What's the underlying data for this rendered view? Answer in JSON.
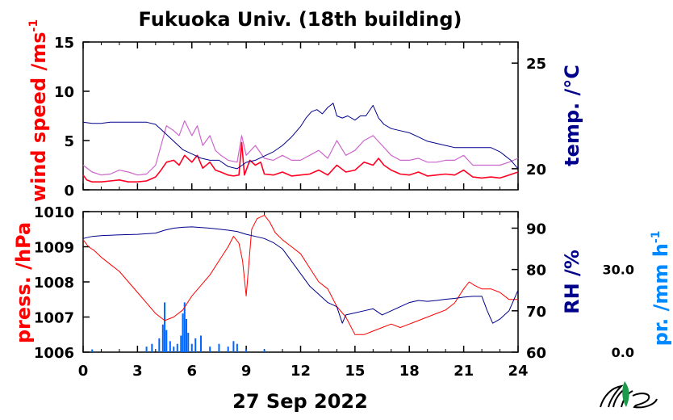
{
  "title": "Fukuoka Univ. (18th building)",
  "xlabel": "27 Sep 2022",
  "colors": {
    "wind": "#ff0022",
    "gust": "#cc66cc",
    "temp": "#00008b",
    "press": "#ff0000",
    "rh": "#00008b",
    "precip": "#0066ff",
    "axis": "#000000"
  },
  "logo": "mes-logo-icon",
  "chart_data": [
    {
      "type": "line",
      "panel": "top",
      "x_ticks": [
        "0",
        "3",
        "6",
        "9",
        "12",
        "15",
        "18",
        "21",
        "24"
      ],
      "xlim": [
        0,
        24
      ],
      "left_axis": {
        "label": "wind speed /ms",
        "label_sup": "-1",
        "ticks": [
          "0",
          "5",
          "10",
          "15"
        ],
        "lim": [
          0,
          15
        ]
      },
      "right_axis": {
        "label": "temp. /°C",
        "ticks": [
          "20",
          "25"
        ],
        "lim": [
          19,
          26
        ]
      },
      "series": [
        {
          "axis": "right",
          "x": [
            0,
            0.5,
            1,
            1.5,
            2,
            2.5,
            3,
            3.5,
            4,
            4.5,
            5,
            5.5,
            6,
            6.5,
            7,
            7.5,
            8,
            8.5,
            9,
            9.5,
            10,
            10.5,
            11,
            11.5,
            12,
            12.3,
            12.6,
            12.9,
            13.2,
            13.5,
            13.8,
            14,
            14.3,
            14.6,
            15,
            15.3,
            15.6,
            16,
            16.3,
            16.6,
            17,
            17.5,
            18,
            18.5,
            19,
            19.5,
            20,
            20.5,
            21,
            21.5,
            22,
            22.5,
            23,
            23.3,
            23.6,
            24
          ],
          "values": [
            22.2,
            22.15,
            22.15,
            22.2,
            22.2,
            22.2,
            22.2,
            22.2,
            22.1,
            21.7,
            21.3,
            20.9,
            20.7,
            20.5,
            20.4,
            20.4,
            20.1,
            20.0,
            20.3,
            20.4,
            20.6,
            20.8,
            21.1,
            21.5,
            22.0,
            22.4,
            22.7,
            22.8,
            22.6,
            22.9,
            23.1,
            22.5,
            22.4,
            22.5,
            22.3,
            22.5,
            22.5,
            23.0,
            22.4,
            22.1,
            21.9,
            21.8,
            21.7,
            21.5,
            21.3,
            21.2,
            21.1,
            21.0,
            21.0,
            21.0,
            21.0,
            21.0,
            20.8,
            20.6,
            20.4,
            20.0
          ]
        },
        {
          "axis": "left",
          "x": [
            0,
            0.2,
            0.5,
            1,
            1.5,
            2,
            2.5,
            3,
            3.5,
            4,
            4.3,
            4.6,
            5,
            5.3,
            5.6,
            6,
            6.3,
            6.6,
            7,
            7.3,
            7.6,
            8,
            8.3,
            8.6,
            8.75,
            8.9,
            9.2,
            9.5,
            9.8,
            10,
            10.5,
            11,
            11.5,
            12,
            12.5,
            13,
            13.5,
            14,
            14.5,
            15,
            15.5,
            16,
            16.3,
            16.6,
            17,
            17.5,
            18,
            18.5,
            19,
            19.5,
            20,
            20.5,
            21,
            21.5,
            22,
            22.5,
            23,
            23.5,
            24
          ],
          "values": [
            1.5,
            1.0,
            0.8,
            0.8,
            0.9,
            1.0,
            0.8,
            0.8,
            0.9,
            1.3,
            2.0,
            2.8,
            3.0,
            2.5,
            3.5,
            2.8,
            3.5,
            2.2,
            2.8,
            2.0,
            1.8,
            1.5,
            1.4,
            1.5,
            4.8,
            1.5,
            3.0,
            2.5,
            2.8,
            1.6,
            1.5,
            1.8,
            1.4,
            1.5,
            1.6,
            2.0,
            1.5,
            2.5,
            1.8,
            2.0,
            2.8,
            2.5,
            3.2,
            2.5,
            2.0,
            1.6,
            1.5,
            1.8,
            1.4,
            1.5,
            1.6,
            1.5,
            2.0,
            1.3,
            1.2,
            1.3,
            1.2,
            1.5,
            1.8
          ]
        },
        {
          "axis": "left",
          "x": [
            0,
            0.5,
            1,
            1.5,
            2,
            2.5,
            3,
            3.5,
            4,
            4.3,
            4.6,
            5,
            5.3,
            5.6,
            6,
            6.3,
            6.6,
            7,
            7.3,
            7.6,
            8,
            8.5,
            8.75,
            9,
            9.5,
            10,
            10.5,
            11,
            11.5,
            12,
            12.5,
            13,
            13.5,
            14,
            14.5,
            15,
            15.5,
            16,
            16.5,
            17,
            17.5,
            18,
            18.5,
            19,
            19.5,
            20,
            20.5,
            21,
            21.5,
            22,
            22.5,
            23,
            23.5,
            24
          ],
          "values": [
            2.5,
            1.8,
            1.5,
            1.6,
            2.0,
            1.8,
            1.5,
            1.6,
            2.5,
            4.5,
            6.5,
            6.0,
            5.5,
            7.0,
            5.5,
            6.5,
            4.5,
            5.5,
            4.0,
            3.5,
            3.0,
            2.8,
            5.5,
            3.5,
            4.5,
            3.2,
            3.0,
            3.5,
            3.0,
            3.0,
            3.5,
            4.0,
            3.2,
            5.0,
            3.5,
            4.0,
            5.0,
            5.5,
            4.5,
            3.5,
            3.0,
            3.0,
            3.2,
            2.8,
            2.8,
            3.0,
            3.0,
            3.5,
            2.5,
            2.5,
            2.5,
            2.5,
            2.8,
            3.2
          ]
        }
      ]
    },
    {
      "type": "line",
      "panel": "bottom",
      "x_ticks": [
        "0",
        "3",
        "6",
        "9",
        "12",
        "15",
        "18",
        "21",
        "24"
      ],
      "xlim": [
        0,
        24
      ],
      "left_axis": {
        "label": "press. /hPa",
        "ticks": [
          "1006",
          "1007",
          "1008",
          "1009",
          "1010"
        ],
        "lim": [
          1006,
          1010
        ]
      },
      "right_axis": {
        "label": "RH /%",
        "ticks": [
          "60",
          "70",
          "80",
          "90"
        ],
        "lim": [
          60,
          94
        ]
      },
      "precip_axis": {
        "label": "pr. /mm h",
        "label_sup": "-1",
        "ticks": [
          "0.0",
          "30.0"
        ],
        "lim": [
          0,
          45
        ]
      },
      "series": [
        {
          "axis": "left",
          "x": [
            0,
            0.3,
            0.6,
            1,
            1.5,
            2,
            2.5,
            3,
            3.5,
            4,
            4.5,
            5,
            5.5,
            6,
            6.5,
            7,
            7.5,
            8,
            8.3,
            8.6,
            8.8,
            9,
            9.3,
            9.6,
            10,
            10.3,
            10.6,
            11,
            11.5,
            12,
            12.5,
            13,
            13.5,
            14,
            14.5,
            15,
            15.5,
            16,
            16.5,
            17,
            17.5,
            18,
            18.5,
            19,
            19.5,
            20,
            20.5,
            21,
            21.3,
            21.6,
            22,
            22.5,
            23,
            23.5,
            24
          ],
          "values": [
            1009.2,
            1009.0,
            1008.9,
            1008.7,
            1008.5,
            1008.3,
            1008.0,
            1007.7,
            1007.4,
            1007.1,
            1006.9,
            1007.0,
            1007.2,
            1007.6,
            1007.9,
            1008.2,
            1008.6,
            1009.0,
            1009.3,
            1009.1,
            1008.6,
            1007.6,
            1009.5,
            1009.8,
            1009.9,
            1009.7,
            1009.4,
            1009.2,
            1009.0,
            1008.8,
            1008.4,
            1008.0,
            1007.8,
            1007.3,
            1007.0,
            1006.5,
            1006.5,
            1006.6,
            1006.7,
            1006.8,
            1006.7,
            1006.8,
            1006.9,
            1007.0,
            1007.1,
            1007.2,
            1007.4,
            1007.8,
            1008.0,
            1007.9,
            1007.8,
            1007.8,
            1007.7,
            1007.5,
            1007.5
          ]
        },
        {
          "axis": "right",
          "x": [
            0,
            0.5,
            1,
            1.5,
            2,
            3,
            4,
            4.5,
            5,
            5.5,
            6,
            7,
            8,
            8.5,
            9,
            9.5,
            10,
            10.5,
            11,
            11.5,
            12,
            12.5,
            13,
            13.5,
            14,
            14.3,
            14.5,
            15,
            15.5,
            16,
            16.5,
            17,
            17.5,
            18,
            18.5,
            19,
            19.5,
            20,
            20.5,
            21,
            21.5,
            22,
            22.3,
            22.6,
            23,
            23.5,
            24
          ],
          "values": [
            87.5,
            88,
            88.2,
            88.3,
            88.4,
            88.5,
            88.8,
            89.5,
            90,
            90.2,
            90.3,
            90,
            89.5,
            89.2,
            88.5,
            88.0,
            87.5,
            86.5,
            85.0,
            82.0,
            79.0,
            76.0,
            74.0,
            72.0,
            71.0,
            67.0,
            69.0,
            69.5,
            70.0,
            70.5,
            69.0,
            70.0,
            71.0,
            72.0,
            72.5,
            72.3,
            72.5,
            72.8,
            73.0,
            73.3,
            73.5,
            73.5,
            70.0,
            67.0,
            68.0,
            70.0,
            75.0
          ]
        },
        {
          "axis": "precip",
          "type": "bar",
          "x": [
            0.5,
            3.5,
            3.8,
            4.2,
            4.4,
            4.5,
            4.6,
            4.8,
            5.0,
            5.2,
            5.4,
            5.5,
            5.6,
            5.7,
            5.8,
            6.0,
            6.2,
            6.5,
            7.0,
            7.5,
            8.0,
            8.3,
            8.5,
            9.0,
            10.0
          ],
          "values": [
            1,
            2,
            3,
            5,
            10,
            18,
            8,
            4,
            2,
            3,
            6,
            14,
            18,
            12,
            7,
            3,
            5,
            6,
            2,
            3,
            2,
            4,
            3,
            1,
            1
          ]
        }
      ]
    }
  ]
}
